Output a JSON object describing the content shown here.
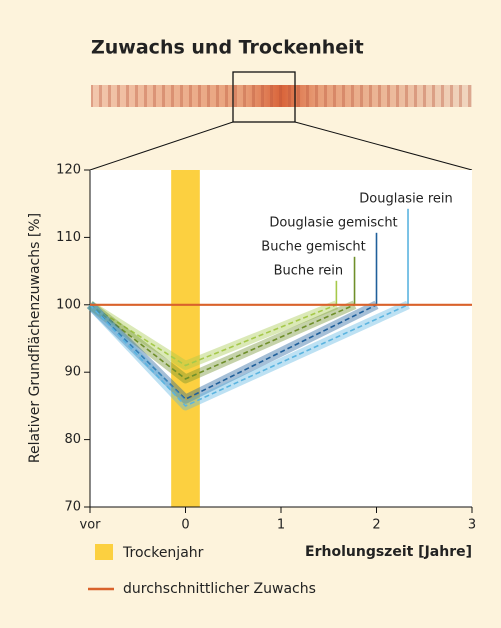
{
  "chart_data": {
    "type": "line",
    "title": "Zuwachs und Trockenheit",
    "ylabel": "Relativer Grundflächenzuwachs [%]",
    "xlabel": "Erholungszeit [Jahre]",
    "xlim": [
      -1,
      3
    ],
    "xticks": [
      {
        "value": -1,
        "label": "vor"
      },
      0,
      1,
      2,
      3
    ],
    "ylim": [
      70,
      120
    ],
    "yticks": [
      70,
      80,
      90,
      100,
      110,
      120
    ],
    "drought": {
      "name": "Trockenjahr",
      "x": [
        -0.15,
        0.15
      ],
      "color": "#fcd040"
    },
    "reference": {
      "name": "durchschnittlicher Zuwachs",
      "value": 100,
      "color": "#d9622b"
    },
    "series": [
      {
        "name": "Buche rein",
        "color": "#a6c94a",
        "x": [
          -1,
          0,
          1.58
        ],
        "values": [
          100,
          91,
          100
        ]
      },
      {
        "name": "Buche gemischt",
        "color": "#6f8f2a",
        "x": [
          -1,
          0,
          1.77
        ],
        "values": [
          100,
          89,
          100
        ]
      },
      {
        "name": "Douglasie gemischt",
        "color": "#1f5f9a",
        "x": [
          -1,
          0,
          2.0
        ],
        "values": [
          100,
          86,
          100
        ]
      },
      {
        "name": "Douglasie rein",
        "color": "#5bb4e0",
        "x": [
          -1,
          0,
          2.33
        ],
        "values": [
          100,
          85,
          100
        ]
      }
    ]
  }
}
